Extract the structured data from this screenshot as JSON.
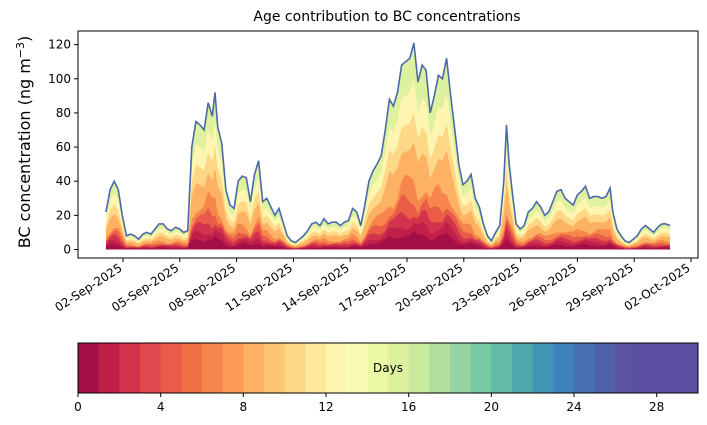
{
  "chart_data": {
    "type": "area",
    "title": "Age contribution to BC concentrations",
    "ylabel_main": "BC concentration (ng m",
    "ylabel_sup": "−3",
    "ylabel_close": ")",
    "ylim": [
      -5,
      128
    ],
    "yticks": [
      0,
      20,
      40,
      60,
      80,
      100,
      120
    ],
    "x_dates": [
      "02-Sep-2025",
      "05-Sep-2025",
      "08-Sep-2025",
      "11-Sep-2025",
      "14-Sep-2025",
      "17-Sep-2025",
      "20-Sep-2025",
      "23-Sep-2025",
      "26-Sep-2025",
      "29-Sep-2025",
      "02-Oct-2025"
    ],
    "x_range_days": [
      -2,
      31.5
    ],
    "series_total": {
      "name": "total",
      "color": "#4c6aa8",
      "points": [
        [
          0.0,
          22
        ],
        [
          0.3,
          35
        ],
        [
          0.6,
          40
        ],
        [
          0.9,
          35
        ],
        [
          1.2,
          20
        ],
        [
          1.5,
          8
        ],
        [
          1.8,
          9
        ],
        [
          2.1,
          8
        ],
        [
          2.4,
          6
        ],
        [
          2.7,
          9
        ],
        [
          3.0,
          10
        ],
        [
          3.3,
          9
        ],
        [
          3.6,
          12
        ],
        [
          3.9,
          15
        ],
        [
          4.2,
          15
        ],
        [
          4.5,
          12
        ],
        [
          4.8,
          11
        ],
        [
          5.1,
          13
        ],
        [
          5.4,
          12
        ],
        [
          5.7,
          10
        ],
        [
          6.0,
          11
        ],
        [
          6.3,
          60
        ],
        [
          6.6,
          75
        ],
        [
          6.9,
          73
        ],
        [
          7.2,
          70
        ],
        [
          7.5,
          86
        ],
        [
          7.8,
          78
        ],
        [
          8.0,
          92
        ],
        [
          8.2,
          72
        ],
        [
          8.5,
          62
        ],
        [
          8.8,
          35
        ],
        [
          9.1,
          26
        ],
        [
          9.4,
          24
        ],
        [
          9.7,
          40
        ],
        [
          10.0,
          43
        ],
        [
          10.3,
          42
        ],
        [
          10.6,
          28
        ],
        [
          10.9,
          44
        ],
        [
          11.2,
          52
        ],
        [
          11.5,
          28
        ],
        [
          11.8,
          30
        ],
        [
          12.1,
          25
        ],
        [
          12.4,
          20
        ],
        [
          12.7,
          24
        ],
        [
          13.0,
          16
        ],
        [
          13.3,
          8
        ],
        [
          13.6,
          5
        ],
        [
          13.9,
          4
        ],
        [
          14.2,
          6
        ],
        [
          14.5,
          8
        ],
        [
          14.8,
          11
        ],
        [
          15.1,
          15
        ],
        [
          15.4,
          16
        ],
        [
          15.7,
          14
        ],
        [
          16.0,
          18
        ],
        [
          16.3,
          15
        ],
        [
          16.6,
          16
        ],
        [
          16.9,
          16
        ],
        [
          17.2,
          14
        ],
        [
          17.5,
          16
        ],
        [
          17.8,
          17
        ],
        [
          18.1,
          24
        ],
        [
          18.4,
          22
        ],
        [
          18.7,
          14
        ],
        [
          19.0,
          26
        ],
        [
          19.3,
          40
        ],
        [
          19.6,
          46
        ],
        [
          19.9,
          50
        ],
        [
          20.2,
          55
        ],
        [
          20.5,
          70
        ],
        [
          20.8,
          88
        ],
        [
          21.1,
          84
        ],
        [
          21.4,
          92
        ],
        [
          21.7,
          108
        ],
        [
          22.0,
          110
        ],
        [
          22.3,
          112
        ],
        [
          22.6,
          121
        ],
        [
          22.9,
          98
        ],
        [
          23.2,
          108
        ],
        [
          23.5,
          105
        ],
        [
          23.8,
          80
        ],
        [
          24.1,
          90
        ],
        [
          24.4,
          102
        ],
        [
          24.7,
          100
        ],
        [
          25.0,
          112
        ],
        [
          25.3,
          90
        ],
        [
          25.6,
          70
        ],
        [
          25.9,
          50
        ],
        [
          26.2,
          38
        ],
        [
          26.5,
          40
        ],
        [
          26.8,
          44
        ],
        [
          27.1,
          30
        ],
        [
          27.4,
          25
        ],
        [
          27.7,
          15
        ],
        [
          28.0,
          8
        ],
        [
          28.3,
          5
        ],
        [
          28.6,
          10
        ],
        [
          28.9,
          14
        ],
        [
          29.2,
          40
        ],
        [
          29.4,
          73
        ],
        [
          29.6,
          50
        ],
        [
          29.8,
          35
        ],
        [
          30.1,
          15
        ],
        [
          30.4,
          12
        ],
        [
          30.7,
          14
        ],
        [
          31.0,
          22
        ],
        [
          31.3,
          24
        ],
        [
          31.6,
          28
        ],
        [
          31.9,
          25
        ],
        [
          32.2,
          20
        ],
        [
          32.5,
          22
        ],
        [
          32.8,
          28
        ],
        [
          33.1,
          34
        ],
        [
          33.4,
          35
        ],
        [
          33.7,
          30
        ],
        [
          34.0,
          28
        ],
        [
          34.3,
          26
        ],
        [
          34.6,
          32
        ],
        [
          34.9,
          34
        ],
        [
          35.2,
          37
        ],
        [
          35.5,
          30
        ],
        [
          35.8,
          31
        ],
        [
          36.1,
          31
        ],
        [
          36.4,
          30
        ],
        [
          36.7,
          31
        ],
        [
          37.0,
          36
        ],
        [
          37.2,
          22
        ],
        [
          37.5,
          12
        ],
        [
          37.8,
          8
        ],
        [
          38.1,
          5
        ],
        [
          38.4,
          4
        ],
        [
          38.7,
          6
        ],
        [
          39.0,
          8
        ],
        [
          39.3,
          12
        ],
        [
          39.6,
          14
        ],
        [
          39.9,
          12
        ],
        [
          40.2,
          10
        ],
        [
          40.5,
          13
        ],
        [
          40.8,
          15
        ],
        [
          41.1,
          15
        ],
        [
          41.4,
          14
        ]
      ]
    },
    "colorbar": {
      "label": "Days",
      "min": 0,
      "max": 30,
      "n_levels": 30,
      "ticks": [
        0,
        4,
        8,
        12,
        16,
        20,
        24,
        28
      ],
      "colors": [
        "#a50f47",
        "#c01f4a",
        "#d2344d",
        "#df4a4f",
        "#e95c48",
        "#f26f43",
        "#f7864c",
        "#fb9a56",
        "#fdb163",
        "#fdc574",
        "#fed887",
        "#fee89b",
        "#fef5b0",
        "#f8fbb3",
        "#ecf8a4",
        "#ddf19f",
        "#c9e99d",
        "#b0de9f",
        "#95d3a3",
        "#79c8a4",
        "#62baa8",
        "#50a8af",
        "#4294b5",
        "#3f82b9",
        "#4670b3",
        "#5060a8",
        "#5b539f",
        "#5e4fa2",
        "#5e4fa2",
        "#5e4fa2"
      ]
    }
  }
}
